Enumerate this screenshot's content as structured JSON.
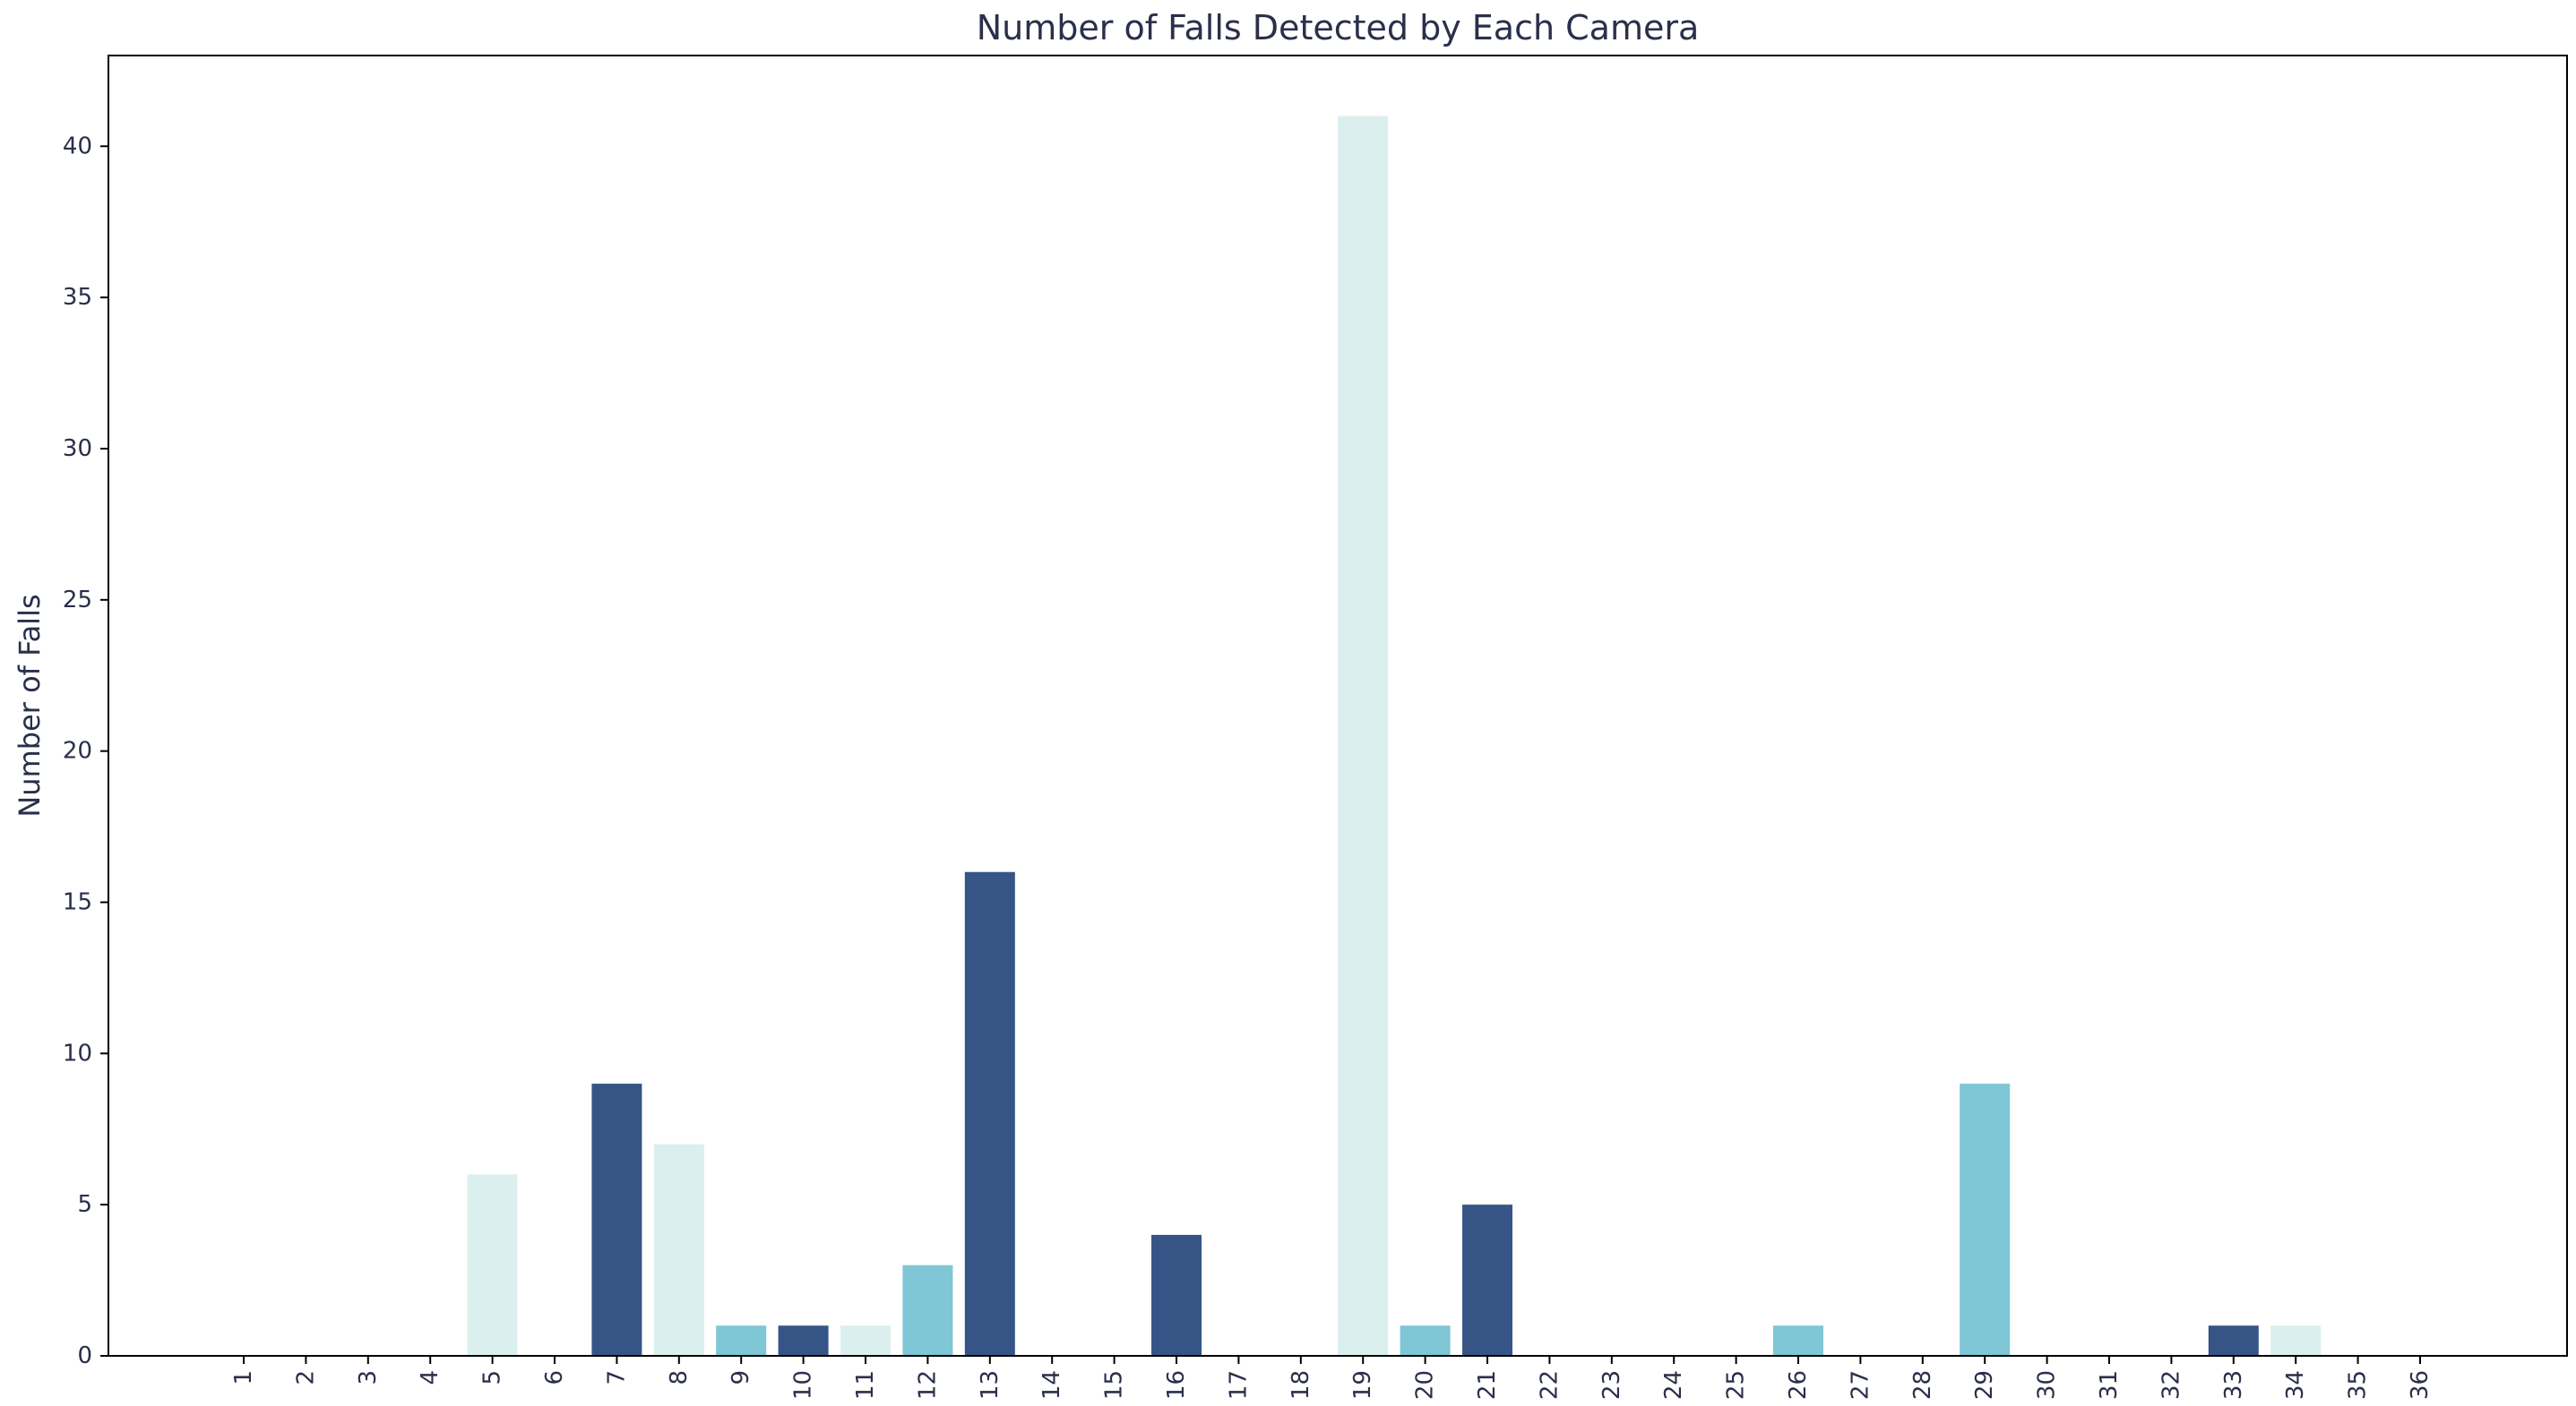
{
  "chart_data": {
    "type": "bar",
    "title": "Number of Falls Detected by Each Camera",
    "xlabel": "",
    "ylabel": "Number of Falls",
    "categories": [
      "1",
      "2",
      "3",
      "4",
      "5",
      "6",
      "7",
      "8",
      "9",
      "10",
      "11",
      "12",
      "13",
      "14",
      "15",
      "16",
      "17",
      "18",
      "19",
      "20",
      "21",
      "22",
      "23",
      "24",
      "25",
      "26",
      "27",
      "28",
      "29",
      "30",
      "31",
      "32",
      "33",
      "34",
      "35",
      "36"
    ],
    "values": [
      0,
      0,
      0,
      0,
      6,
      0,
      9,
      7,
      1,
      1,
      1,
      3,
      16,
      0,
      0,
      4,
      0,
      0,
      41,
      1,
      5,
      0,
      0,
      0,
      0,
      1,
      0,
      0,
      9,
      0,
      0,
      0,
      1,
      1,
      0,
      0
    ],
    "bar_colors": [
      "#7fc6d6",
      "#dbf0ee",
      "#7fc6d6",
      "#365586",
      "#dbf0ee",
      "#7fc6d6",
      "#365586",
      "#dbf0ee",
      "#7fc6d6",
      "#365586",
      "#dbf0ee",
      "#7fc6d6",
      "#365586",
      "#dbf0ee",
      "#7fc6d6",
      "#365586",
      "#dbf0ee",
      "#7fc6d6",
      "#dbf0ee",
      "#7fc6d6",
      "#365586",
      "#dbf0ee",
      "#7fc6d6",
      "#365586",
      "#dbf0ee",
      "#7fc6d6",
      "#365586",
      "#dbf0ee",
      "#7fc6d6",
      "#365586",
      "#dbf0ee",
      "#7fc6d6",
      "#365586",
      "#dbf0ee",
      "#7fc6d6",
      "#365586"
    ],
    "ylim": [
      0,
      43
    ],
    "yticks": [
      0,
      5,
      10,
      15,
      20,
      25,
      30,
      35,
      40
    ],
    "xtick_rotation": "vertical",
    "grid": false,
    "legend": "none"
  }
}
